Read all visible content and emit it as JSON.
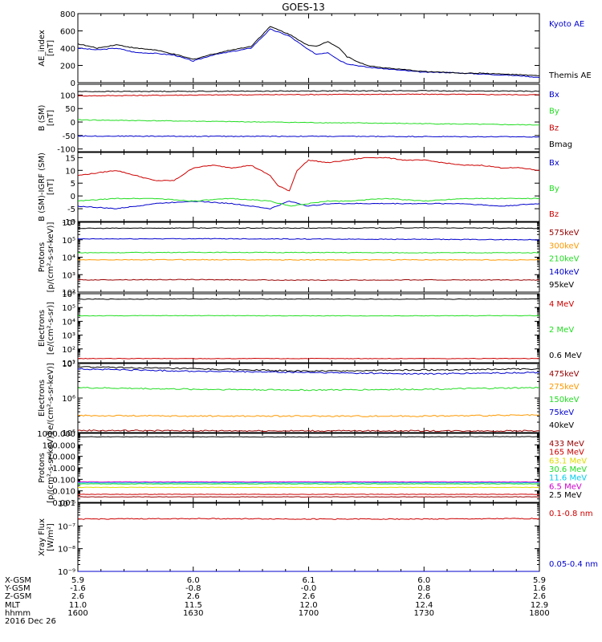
{
  "title": "GOES-13",
  "colors": {
    "black": "#000000",
    "red": "#cc0000",
    "green": "#22dd22",
    "blue": "#0000cc",
    "orange": "#ff9900",
    "darkred": "#990000",
    "yellow": "#dddd00",
    "cyan": "#00ccee",
    "magenta": "#cc00cc"
  },
  "chart_data": [
    {
      "type": "line",
      "ylabel": [
        "AE_index",
        "[nT]"
      ],
      "yscale": "linear",
      "ylim": [
        0,
        800
      ],
      "yticks": [
        0,
        200,
        400,
        600,
        800
      ],
      "ytick_labels": [
        "0",
        "200",
        "400",
        "600",
        "800"
      ],
      "xlim": [
        0,
        120
      ],
      "series": [
        {
          "name": "Kyoto AE",
          "color": "#0000cc",
          "x": [
            0,
            5,
            10,
            15,
            20,
            25,
            30,
            35,
            40,
            45,
            50,
            55,
            60,
            62,
            65,
            68,
            70,
            75,
            80,
            85,
            90,
            95,
            100,
            105,
            110,
            115,
            120
          ],
          "y": [
            400,
            380,
            400,
            350,
            340,
            320,
            250,
            320,
            360,
            400,
            620,
            540,
            380,
            330,
            350,
            260,
            220,
            180,
            160,
            140,
            120,
            120,
            110,
            100,
            90,
            80,
            60
          ]
        },
        {
          "name": "Themis AE",
          "color": "#000000",
          "x": [
            0,
            5,
            10,
            15,
            20,
            25,
            30,
            35,
            40,
            45,
            50,
            55,
            60,
            62,
            65,
            68,
            70,
            75,
            80,
            85,
            90,
            95,
            100,
            105,
            110,
            115,
            120
          ],
          "y": [
            450,
            400,
            440,
            400,
            380,
            330,
            270,
            330,
            380,
            420,
            650,
            560,
            430,
            420,
            480,
            400,
            300,
            200,
            170,
            150,
            130,
            120,
            110,
            110,
            100,
            90,
            80
          ]
        }
      ]
    },
    {
      "type": "line",
      "ylabel": [
        "B (SM)",
        "[nT]"
      ],
      "yscale": "linear",
      "ylim": [
        -110,
        140
      ],
      "yticks": [
        -100,
        -50,
        0,
        50,
        100
      ],
      "ytick_labels": [
        "-100",
        "-50",
        "0",
        "50",
        "100"
      ],
      "xlim": [
        0,
        120
      ],
      "series": [
        {
          "name": "Bx",
          "color": "#0000cc",
          "x": [
            0,
            30,
            60,
            90,
            120
          ],
          "y": [
            -52,
            -53,
            -53,
            -54,
            -55
          ]
        },
        {
          "name": "By",
          "color": "#22dd22",
          "x": [
            0,
            30,
            60,
            90,
            120
          ],
          "y": [
            8,
            3,
            -2,
            -6,
            -11
          ]
        },
        {
          "name": "Bz",
          "color": "#cc0000",
          "x": [
            0,
            30,
            60,
            90,
            120
          ],
          "y": [
            97,
            100,
            102,
            103,
            101
          ]
        },
        {
          "name": "Bmag",
          "color": "#000000",
          "x": [
            0,
            30,
            60,
            90,
            120
          ],
          "y": [
            113,
            114,
            115,
            116,
            114
          ]
        }
      ]
    },
    {
      "type": "line",
      "ylabel": [
        "B (SM)-IGRF (SM)",
        "[nT]"
      ],
      "yscale": "linear",
      "ylim": [
        -10,
        17
      ],
      "yticks": [
        -10,
        -5,
        0,
        5,
        10,
        15
      ],
      "ytick_labels": [
        "-10",
        "-5",
        "0",
        "5",
        "10",
        "15"
      ],
      "xlim": [
        0,
        120
      ],
      "series": [
        {
          "name": "Bx",
          "color": "#0000cc",
          "x": [
            0,
            10,
            20,
            30,
            40,
            50,
            55,
            60,
            65,
            70,
            80,
            90,
            100,
            110,
            120
          ],
          "y": [
            -4,
            -5,
            -3,
            -2,
            -3,
            -5,
            -2,
            -4,
            -3,
            -3,
            -3,
            -3,
            -3,
            -4,
            -3
          ]
        },
        {
          "name": "By",
          "color": "#22dd22",
          "x": [
            0,
            10,
            20,
            30,
            40,
            50,
            55,
            60,
            65,
            70,
            80,
            90,
            100,
            110,
            120
          ],
          "y": [
            -2,
            -1,
            -1,
            -2,
            -1,
            -2,
            -4,
            -3,
            -2,
            -2,
            -1,
            -2,
            -1,
            -1,
            -1
          ]
        },
        {
          "name": "Bz",
          "color": "#cc0000",
          "x": [
            0,
            10,
            20,
            25,
            30,
            35,
            40,
            45,
            50,
            52,
            55,
            57,
            60,
            65,
            70,
            75,
            80,
            85,
            90,
            95,
            100,
            105,
            110,
            115,
            120
          ],
          "y": [
            8,
            10,
            6,
            6,
            11,
            12,
            11,
            12,
            8,
            4,
            2,
            10,
            14,
            13,
            14,
            15,
            15,
            14,
            14,
            13,
            12,
            12,
            11,
            11,
            10
          ]
        }
      ]
    },
    {
      "type": "line",
      "ylabel": [
        "Protons",
        "[p/(cm²-s-sr-keV)]"
      ],
      "yscale": "log",
      "ylim": [
        100,
        1000000
      ],
      "yticks": [
        100,
        1000,
        10000,
        100000,
        1000000
      ],
      "ytick_labels": [
        "10²",
        "10³",
        "10⁴",
        "10⁵",
        "10⁶"
      ],
      "xlim": [
        0,
        120
      ],
      "series": [
        {
          "name": "575keV",
          "color": "#990000",
          "x": [
            0,
            30,
            60,
            90,
            120
          ],
          "y": [
            500,
            520,
            480,
            500,
            490
          ]
        },
        {
          "name": "300keV",
          "color": "#ff9900",
          "x": [
            0,
            30,
            60,
            90,
            120
          ],
          "y": [
            7000,
            7200,
            7000,
            7100,
            7000
          ]
        },
        {
          "name": "210keV",
          "color": "#22dd22",
          "x": [
            0,
            30,
            60,
            90,
            120
          ],
          "y": [
            18000,
            19000,
            18500,
            18000,
            18000
          ]
        },
        {
          "name": "140keV",
          "color": "#0000cc",
          "x": [
            0,
            30,
            60,
            90,
            120
          ],
          "y": [
            110000,
            115000,
            110000,
            105000,
            100000
          ]
        },
        {
          "name": "95keV",
          "color": "#000000",
          "x": [
            0,
            30,
            60,
            90,
            120
          ],
          "y": [
            450000,
            470000,
            460000,
            480000,
            450000
          ]
        }
      ]
    },
    {
      "type": "line",
      "ylabel": [
        "Electrons",
        "[e/(cm²-s-sr)]"
      ],
      "yscale": "log",
      "ylim": [
        10,
        1000000
      ],
      "yticks": [
        10,
        100,
        1000,
        10000,
        100000,
        1000000
      ],
      "ytick_labels": [
        "10¹",
        "10²",
        "10³",
        "10⁴",
        "10⁵",
        "10⁶"
      ],
      "xlim": [
        0,
        120
      ],
      "series": [
        {
          "name": "4 MeV",
          "color": "#cc0000",
          "x": [
            0,
            30,
            60,
            90,
            120
          ],
          "y": [
            20,
            20,
            20,
            20,
            20
          ]
        },
        {
          "name": "2 MeV",
          "color": "#22dd22",
          "x": [
            0,
            30,
            60,
            90,
            120
          ],
          "y": [
            25000,
            26000,
            25000,
            25000,
            26000
          ]
        },
        {
          "name": "0.6 MeV",
          "color": "#000000",
          "x": [
            0,
            30,
            60,
            90,
            120
          ],
          "y": [
            400000,
            420000,
            410000,
            400000,
            420000
          ]
        }
      ]
    },
    {
      "type": "line",
      "ylabel": [
        "Electrons",
        "[e/(cm²-s-sr-keV)]"
      ],
      "yscale": "log",
      "ylim": [
        100000,
        10000000
      ],
      "yticks": [
        100000,
        1000000,
        10000000
      ],
      "ytick_labels": [
        "10⁵",
        "10⁶",
        "10⁷"
      ],
      "xlim": [
        0,
        120
      ],
      "series": [
        {
          "name": "475keV",
          "color": "#990000",
          "x": [
            0,
            30,
            60,
            90,
            120
          ],
          "y": [
            115000,
            113000,
            112000,
            112000,
            112000
          ]
        },
        {
          "name": "275keV",
          "color": "#ff9900",
          "x": [
            0,
            30,
            60,
            90,
            120
          ],
          "y": [
            310000,
            300000,
            300000,
            300000,
            320000
          ]
        },
        {
          "name": "150keV",
          "color": "#22dd22",
          "x": [
            0,
            30,
            60,
            90,
            120
          ],
          "y": [
            2000000,
            1800000,
            1700000,
            1800000,
            2000000
          ]
        },
        {
          "name": "75keV",
          "color": "#0000cc",
          "x": [
            0,
            30,
            60,
            90,
            120
          ],
          "y": [
            7000000,
            6000000,
            5500000,
            5000000,
            5500000
          ]
        },
        {
          "name": "40keV",
          "color": "#000000",
          "x": [
            0,
            30,
            60,
            90,
            120
          ],
          "y": [
            8000000,
            7000000,
            6000000,
            6500000,
            7000000
          ]
        }
      ]
    },
    {
      "type": "line",
      "ylabel": [
        "Protons",
        "[p/(cm²-s-sr-keV)]"
      ],
      "yscale": "log",
      "ylim": [
        0.001,
        1000
      ],
      "yticks": [
        0.001,
        0.01,
        0.1,
        1,
        10,
        100,
        1000
      ],
      "ytick_labels": [
        "0.001",
        "0.010",
        "0.100",
        "1.000",
        "10.000",
        "100.000",
        "1000.000"
      ],
      "xlim": [
        0,
        120
      ],
      "series": [
        {
          "name": "433 MeV",
          "color": "#990000",
          "x": [
            0,
            30,
            60,
            90,
            120
          ],
          "y": [
            0.003,
            0.003,
            0.003,
            0.003,
            0.003
          ]
        },
        {
          "name": "165 MeV",
          "color": "#cc0000",
          "x": [
            0,
            30,
            60,
            90,
            120
          ],
          "y": [
            0.005,
            0.005,
            0.005,
            0.005,
            0.005
          ]
        },
        {
          "name": "63.1 MeV",
          "color": "#dddd00",
          "x": [
            0,
            30,
            60,
            90,
            120
          ],
          "y": [
            0.02,
            0.02,
            0.02,
            0.02,
            0.02
          ]
        },
        {
          "name": "30.6 MeV",
          "color": "#22dd22",
          "x": [
            0,
            30,
            60,
            90,
            120
          ],
          "y": [
            0.04,
            0.04,
            0.04,
            0.04,
            0.04
          ]
        },
        {
          "name": "11.6 MeV",
          "color": "#00ccee",
          "x": [
            0,
            30,
            60,
            90,
            120
          ],
          "y": [
            0.05,
            0.05,
            0.05,
            0.05,
            0.05
          ]
        },
        {
          "name": "6.5 MeV",
          "color": "#cc00cc",
          "x": [
            0,
            30,
            60,
            90,
            120
          ],
          "y": [
            0.06,
            0.06,
            0.06,
            0.06,
            0.06
          ]
        },
        {
          "name": "2.5 MeV",
          "color": "#000000",
          "x": [
            0,
            30,
            60,
            90,
            120
          ],
          "y": [
            500,
            500,
            480,
            500,
            520
          ]
        }
      ]
    },
    {
      "type": "line",
      "ylabel": [
        "Xray Flux",
        "[W/m²]"
      ],
      "yscale": "log",
      "ylim": [
        1e-09,
        1e-06
      ],
      "yticks": [
        1e-09,
        1e-08,
        1e-07,
        1e-06
      ],
      "ytick_labels": [
        "10⁻⁹",
        "10⁻⁸",
        "10⁻⁷",
        "10⁻⁶"
      ],
      "xlim": [
        0,
        120
      ],
      "series": [
        {
          "name": "0.1-0.8 nm",
          "color": "#cc0000",
          "x": [
            0,
            30,
            60,
            90,
            120
          ],
          "y": [
            2e-07,
            2.1e-07,
            2e-07,
            2e-07,
            2.1e-07
          ]
        },
        {
          "name": "0.05-0.4 nm",
          "color": "#0000cc",
          "x": [
            0,
            30,
            60,
            90,
            120
          ],
          "y": [
            9e-10,
            8.5e-10,
            8e-10,
            9e-10,
            8.5e-10
          ]
        }
      ]
    }
  ],
  "x_axis": {
    "row_labels": [
      "X-GSM",
      "Y-GSM",
      "Z-GSM",
      "MLT",
      "hhmm",
      "2016 Dec 26"
    ],
    "columns": [
      {
        "x": 0,
        "values": [
          "5.9",
          "-1.6",
          "2.6",
          "11.0",
          "1600"
        ]
      },
      {
        "x": 30,
        "values": [
          "6.0",
          "-0.8",
          "2.6",
          "11.5",
          "1630"
        ]
      },
      {
        "x": 60,
        "values": [
          "6.1",
          "-0.0",
          "2.6",
          "12.0",
          "1700"
        ]
      },
      {
        "x": 90,
        "values": [
          "6.0",
          "0.8",
          "2.6",
          "12.4",
          "1730"
        ]
      },
      {
        "x": 120,
        "values": [
          "5.9",
          "1.6",
          "2.6",
          "12.9",
          "1800"
        ]
      }
    ]
  }
}
